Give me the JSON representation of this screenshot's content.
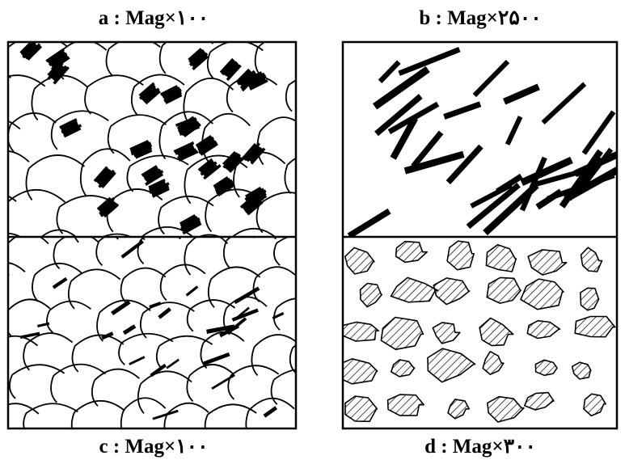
{
  "panels": [
    {
      "label": "a : Mag×۱۰۰"
    },
    {
      "label": "b : Mag×۲۵۰۰"
    },
    {
      "label": "c : Mag×۱۰۰"
    },
    {
      "label": "d : Mag×۳۰۰"
    }
  ]
}
